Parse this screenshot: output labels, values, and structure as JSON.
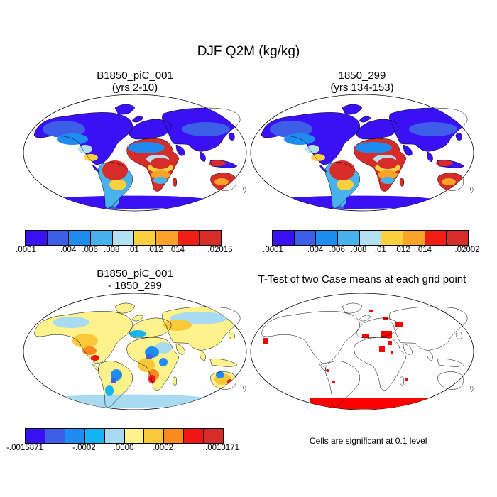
{
  "figure_title": "DJF Q2M (kg/kg)",
  "panels": {
    "top_left": {
      "title_line1": "B1850_piC_001",
      "title_line2": "(yrs 2-10)"
    },
    "top_right": {
      "title_line1": "1850_299",
      "title_line2": "(yrs 134-153)"
    },
    "bottom_left": {
      "title_line1": "B1850_piC_001",
      "title_line2": "- 1850_299"
    },
    "bottom_right": {
      "title_line1": "T-Test of two Case means at each grid point",
      "note": "Cells are significant at 0.1 level"
    }
  },
  "colorbars": {
    "top_left": {
      "colors": [
        "#3a10f5",
        "#3d5fe8",
        "#1e8cf0",
        "#48b2ec",
        "#b3e1f2",
        "#fbd03f",
        "#f9a328",
        "#f21e16",
        "#d62c2a"
      ],
      "labels": [
        ".0001",
        ".004",
        ".006",
        ".008",
        ".01",
        ".012",
        ".014",
        ".02015"
      ]
    },
    "top_right": {
      "colors": [
        "#3a10f5",
        "#3d5fe8",
        "#1e8cf0",
        "#48b2ec",
        "#b3e1f2",
        "#fbd03f",
        "#f9a328",
        "#f21e16",
        "#d62c2a"
      ],
      "labels": [
        ".0001",
        ".004",
        ".006",
        ".008",
        ".01",
        ".012",
        ".014",
        ".02002"
      ]
    },
    "bottom_left": {
      "colors": [
        "#3a10f5",
        "#3d5fe8",
        "#1e8cf0",
        "#14b4f4",
        "#a8daf2",
        "#fdf28c",
        "#fbc83a",
        "#f98a1e",
        "#f21616",
        "#d62c2a"
      ],
      "labels": [
        "-.0015871",
        "-.0002",
        ".0000",
        ".0002",
        ".0010171"
      ]
    }
  },
  "colors": {
    "significant": "#ff0000",
    "coast": "#000000"
  }
}
